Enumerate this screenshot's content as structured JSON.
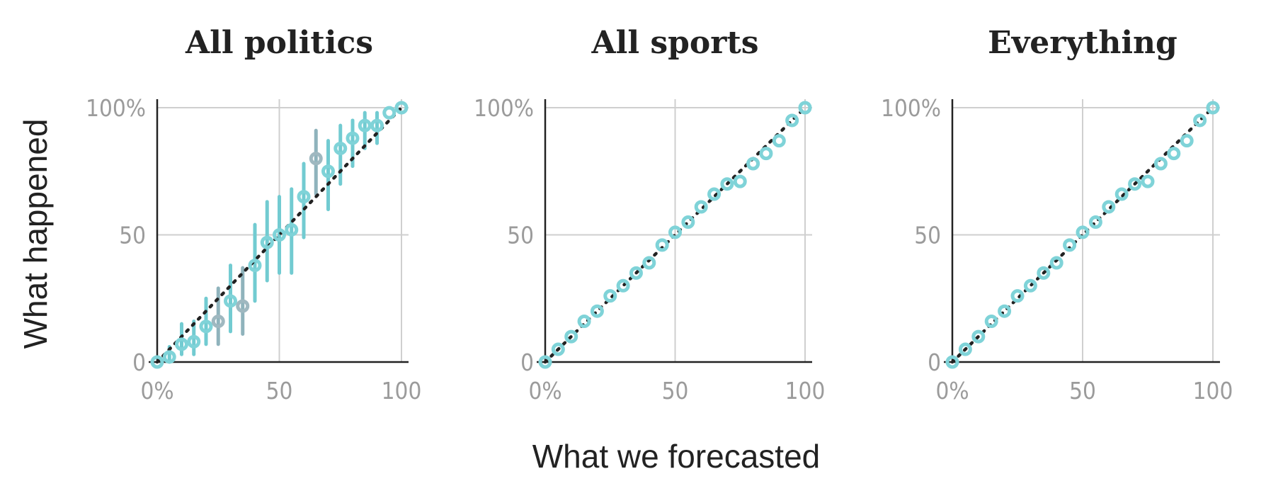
{
  "chart_data": [
    {
      "type": "scatter",
      "title": "All politics",
      "xlim": [
        0,
        100
      ],
      "ylim": [
        0,
        100
      ],
      "x_ticks": [
        "0%",
        "50",
        "100"
      ],
      "y_ticks": [
        "0",
        "50",
        "100%"
      ],
      "grid": true,
      "reference_line": "y = x",
      "points": [
        {
          "x": 0,
          "y": 0
        },
        {
          "x": 5,
          "y": 2,
          "lo": 0,
          "hi": 6
        },
        {
          "x": 10,
          "y": 7,
          "lo": 3,
          "hi": 15
        },
        {
          "x": 15,
          "y": 8,
          "lo": 3,
          "hi": 16
        },
        {
          "x": 20,
          "y": 14,
          "lo": 7,
          "hi": 25
        },
        {
          "x": 25,
          "y": 16,
          "lo": 7,
          "hi": 29
        },
        {
          "x": 30,
          "y": 24,
          "lo": 12,
          "hi": 38
        },
        {
          "x": 35,
          "y": 22,
          "lo": 11,
          "hi": 37
        },
        {
          "x": 40,
          "y": 38,
          "lo": 24,
          "hi": 54
        },
        {
          "x": 45,
          "y": 47,
          "lo": 32,
          "hi": 63
        },
        {
          "x": 50,
          "y": 50,
          "lo": 35,
          "hi": 65
        },
        {
          "x": 55,
          "y": 52,
          "lo": 35,
          "hi": 68
        },
        {
          "x": 60,
          "y": 65,
          "lo": 49,
          "hi": 78
        },
        {
          "x": 65,
          "y": 80,
          "lo": 66,
          "hi": 91
        },
        {
          "x": 70,
          "y": 75,
          "lo": 60,
          "hi": 87
        },
        {
          "x": 75,
          "y": 84,
          "lo": 70,
          "hi": 93
        },
        {
          "x": 80,
          "y": 88,
          "lo": 77,
          "hi": 95
        },
        {
          "x": 85,
          "y": 93,
          "lo": 84,
          "hi": 98
        },
        {
          "x": 90,
          "y": 93,
          "lo": 86,
          "hi": 98
        },
        {
          "x": 95,
          "y": 98
        },
        {
          "x": 100,
          "y": 100
        }
      ]
    },
    {
      "type": "scatter",
      "title": "All sports",
      "xlim": [
        0,
        100
      ],
      "ylim": [
        0,
        100
      ],
      "x_ticks": [
        "0%",
        "50",
        "100"
      ],
      "y_ticks": [
        "0",
        "50",
        "100%"
      ],
      "grid": true,
      "reference_line": "y = x",
      "points": [
        {
          "x": 0,
          "y": 0
        },
        {
          "x": 5,
          "y": 5
        },
        {
          "x": 10,
          "y": 10
        },
        {
          "x": 15,
          "y": 16
        },
        {
          "x": 20,
          "y": 20
        },
        {
          "x": 25,
          "y": 26
        },
        {
          "x": 30,
          "y": 30
        },
        {
          "x": 35,
          "y": 35
        },
        {
          "x": 40,
          "y": 39
        },
        {
          "x": 45,
          "y": 46
        },
        {
          "x": 50,
          "y": 51
        },
        {
          "x": 55,
          "y": 55
        },
        {
          "x": 60,
          "y": 61
        },
        {
          "x": 65,
          "y": 66
        },
        {
          "x": 70,
          "y": 70
        },
        {
          "x": 75,
          "y": 71
        },
        {
          "x": 80,
          "y": 78
        },
        {
          "x": 85,
          "y": 82
        },
        {
          "x": 90,
          "y": 87
        },
        {
          "x": 95,
          "y": 95
        },
        {
          "x": 100,
          "y": 100
        }
      ]
    },
    {
      "type": "scatter",
      "title": "Everything",
      "xlim": [
        0,
        100
      ],
      "ylim": [
        0,
        100
      ],
      "x_ticks": [
        "0%",
        "50",
        "100"
      ],
      "y_ticks": [
        "0",
        "50",
        "100%"
      ],
      "grid": true,
      "reference_line": "y = x",
      "points": [
        {
          "x": 0,
          "y": 0
        },
        {
          "x": 5,
          "y": 5
        },
        {
          "x": 10,
          "y": 10
        },
        {
          "x": 15,
          "y": 16
        },
        {
          "x": 20,
          "y": 20
        },
        {
          "x": 25,
          "y": 26
        },
        {
          "x": 30,
          "y": 30
        },
        {
          "x": 35,
          "y": 35
        },
        {
          "x": 40,
          "y": 39
        },
        {
          "x": 45,
          "y": 46
        },
        {
          "x": 50,
          "y": 51
        },
        {
          "x": 55,
          "y": 55
        },
        {
          "x": 60,
          "y": 61
        },
        {
          "x": 65,
          "y": 66
        },
        {
          "x": 70,
          "y": 70
        },
        {
          "x": 75,
          "y": 71
        },
        {
          "x": 80,
          "y": 78
        },
        {
          "x": 85,
          "y": 82
        },
        {
          "x": 90,
          "y": 87
        },
        {
          "x": 95,
          "y": 95
        },
        {
          "x": 100,
          "y": 100
        }
      ]
    }
  ],
  "axis_titles": {
    "y": "What happened",
    "x": "What we forecasted"
  },
  "colors": {
    "point": "#7fd3d8",
    "point_muted": "#9fb8c0",
    "error_bar": "#72cbd1",
    "error_bar_muted": "#8fb3bc",
    "reference_line": "#222222",
    "grid": "#cfcfcf",
    "tick_text": "#9b9b9b",
    "title_text": "#222222"
  }
}
